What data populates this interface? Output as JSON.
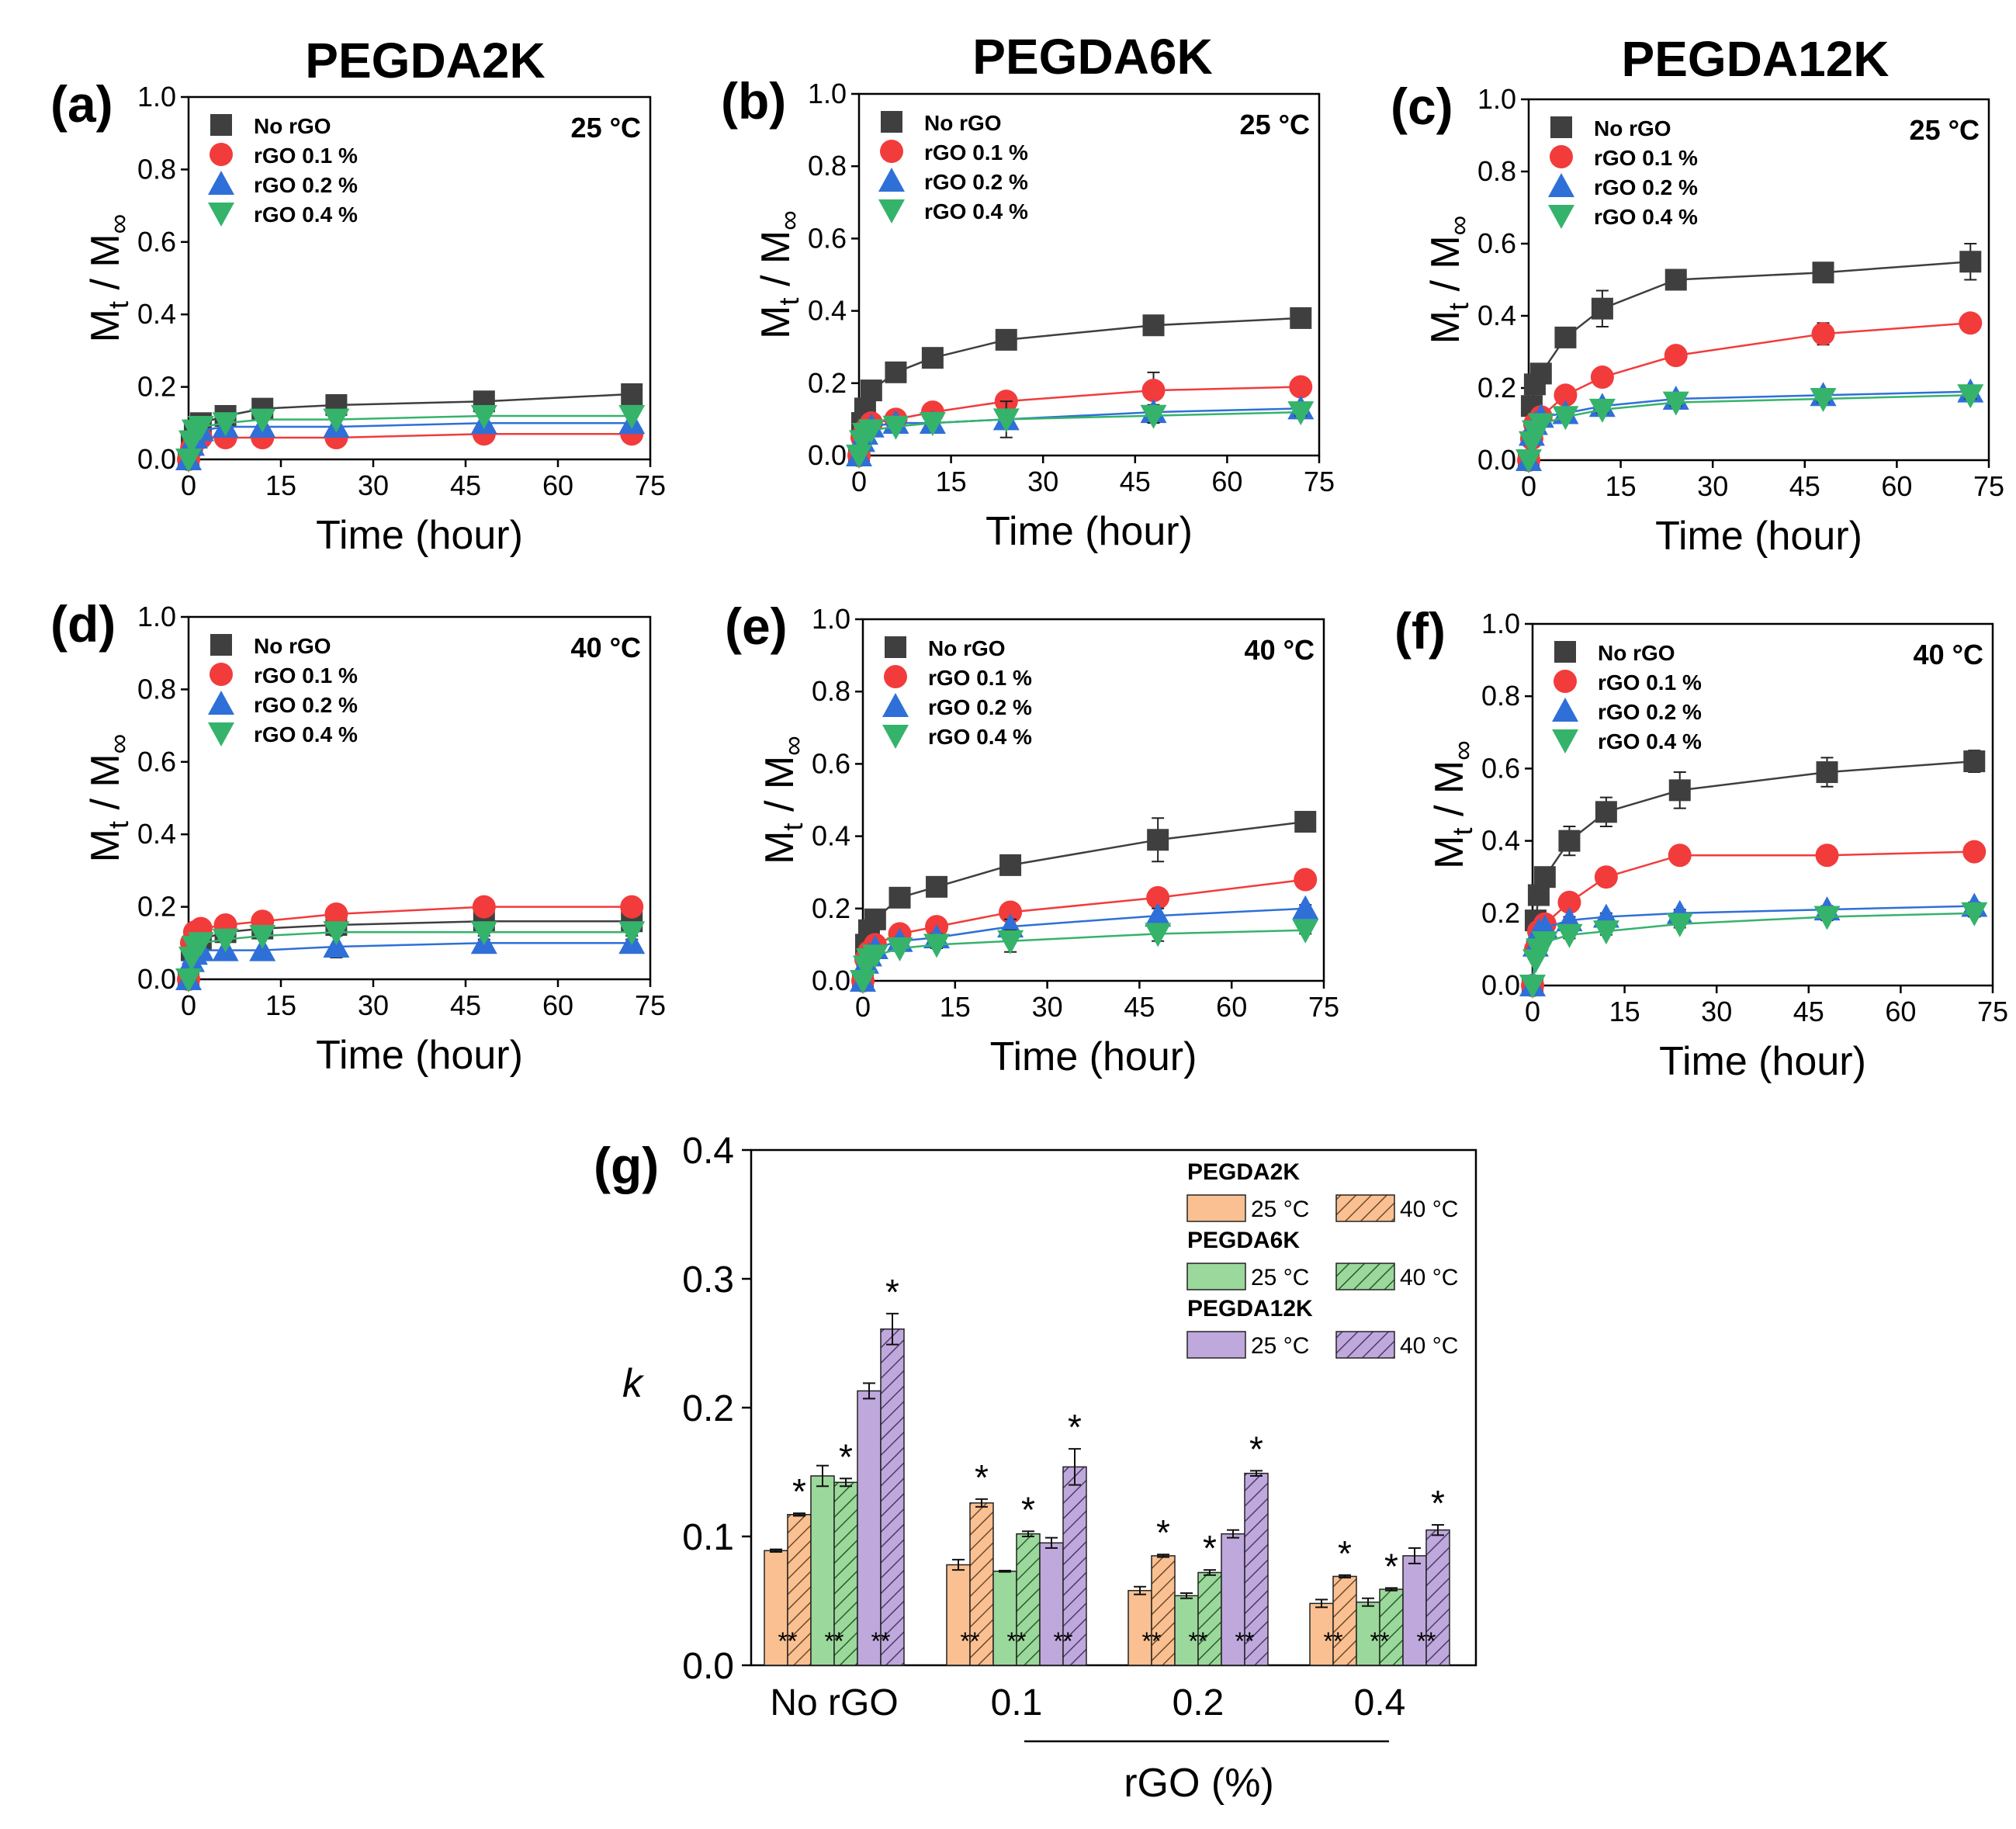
{
  "figure": {
    "column_titles": [
      "PEGDA2K",
      "PEGDA6K",
      "PEGDA12K"
    ]
  },
  "chart_data": [
    {
      "type": "scatter",
      "panel": "(a)",
      "temperature": "25 °C",
      "xlabel": "Time (hour)",
      "ylabel": "Mt / M∞",
      "xlim": [
        0,
        75
      ],
      "ylim": [
        0,
        1.0
      ],
      "xticks": [
        "0",
        "15",
        "30",
        "45",
        "60",
        "75"
      ],
      "yticks": [
        "0.0",
        "0.2",
        "0.4",
        "0.6",
        "0.8",
        "1.0"
      ],
      "x": [
        0,
        0.5,
        1,
        2,
        6,
        12,
        24,
        48,
        72
      ],
      "series": [
        {
          "name": "No rGO",
          "marker": "square",
          "color": "#3f3f3f",
          "values": [
            0,
            0.05,
            0.08,
            0.1,
            0.12,
            0.14,
            0.15,
            0.16,
            0.18
          ],
          "errors": [
            0,
            0,
            0,
            0,
            0,
            0.01,
            0.01,
            0.01,
            0.01
          ]
        },
        {
          "name": "rGO 0.1 %",
          "marker": "circle",
          "color": "#f23b3b",
          "values": [
            0,
            0.03,
            0.05,
            0.06,
            0.06,
            0.06,
            0.06,
            0.07,
            0.07
          ],
          "errors": [
            0,
            0,
            0,
            0,
            0,
            0,
            0,
            0,
            0
          ]
        },
        {
          "name": "rGO 0.2 %",
          "marker": "triangle-up",
          "color": "#2f6fd8",
          "values": [
            0,
            0.04,
            0.06,
            0.08,
            0.09,
            0.09,
            0.09,
            0.1,
            0.1
          ],
          "errors": [
            0,
            0,
            0,
            0,
            0,
            0,
            0,
            0,
            0
          ]
        },
        {
          "name": "rGO 0.4 %",
          "marker": "triangle-down",
          "color": "#35b36b",
          "values": [
            0,
            0.05,
            0.08,
            0.09,
            0.1,
            0.11,
            0.11,
            0.12,
            0.12
          ],
          "errors": [
            0,
            0,
            0,
            0,
            0,
            0,
            0,
            0,
            0
          ]
        }
      ]
    },
    {
      "type": "scatter",
      "panel": "(b)",
      "temperature": "25 °C",
      "xlabel": "Time (hour)",
      "ylabel": "Mt / M∞",
      "xlim": [
        0,
        75
      ],
      "ylim": [
        0,
        1.0
      ],
      "xticks": [
        "0",
        "15",
        "30",
        "45",
        "60",
        "75"
      ],
      "yticks": [
        "0.0",
        "0.2",
        "0.4",
        "0.6",
        "0.8",
        "1.0"
      ],
      "x": [
        0,
        0.5,
        1,
        2,
        6,
        12,
        24,
        48,
        72
      ],
      "series": [
        {
          "name": "No rGO",
          "marker": "square",
          "color": "#3f3f3f",
          "values": [
            0,
            0.09,
            0.13,
            0.18,
            0.23,
            0.27,
            0.32,
            0.36,
            0.38
          ],
          "errors": [
            0,
            0,
            0,
            0,
            0.01,
            0.01,
            0.02,
            0.02,
            0.01
          ]
        },
        {
          "name": "rGO 0.1 %",
          "marker": "circle",
          "color": "#f23b3b",
          "values": [
            0,
            0.05,
            0.07,
            0.09,
            0.1,
            0.12,
            0.15,
            0.18,
            0.19
          ],
          "errors": [
            0,
            0,
            0,
            0,
            0,
            0.01,
            0.02,
            0.05,
            0.01
          ]
        },
        {
          "name": "rGO 0.2 %",
          "marker": "triangle-up",
          "color": "#2f6fd8",
          "values": [
            0,
            0.04,
            0.06,
            0.08,
            0.09,
            0.09,
            0.1,
            0.12,
            0.13
          ],
          "errors": [
            0,
            0,
            0,
            0,
            0,
            0,
            0.02,
            0.02,
            0.01
          ]
        },
        {
          "name": "rGO 0.4 %",
          "marker": "triangle-down",
          "color": "#35b36b",
          "values": [
            0,
            0.04,
            0.06,
            0.07,
            0.08,
            0.09,
            0.1,
            0.11,
            0.12
          ],
          "errors": [
            0,
            0,
            0,
            0,
            0,
            0,
            0.05,
            0.02,
            0.01
          ]
        }
      ]
    },
    {
      "type": "scatter",
      "panel": "(c)",
      "temperature": "25 °C",
      "xlabel": "Time (hour)",
      "ylabel": "Mt / M∞",
      "xlim": [
        0,
        75
      ],
      "ylim": [
        0,
        1.0
      ],
      "xticks": [
        "0",
        "15",
        "30",
        "45",
        "60",
        "75"
      ],
      "yticks": [
        "0.0",
        "0.2",
        "0.4",
        "0.6",
        "0.8",
        "1.0"
      ],
      "x": [
        0,
        0.5,
        1,
        2,
        6,
        12,
        24,
        48,
        72
      ],
      "series": [
        {
          "name": "No rGO",
          "marker": "square",
          "color": "#3f3f3f",
          "values": [
            0,
            0.15,
            0.21,
            0.24,
            0.34,
            0.42,
            0.5,
            0.52,
            0.55
          ],
          "errors": [
            0,
            0,
            0,
            0,
            0.02,
            0.05,
            0.02,
            0.02,
            0.05
          ]
        },
        {
          "name": "rGO 0.1 %",
          "marker": "circle",
          "color": "#f23b3b",
          "values": [
            0,
            0.06,
            0.1,
            0.12,
            0.18,
            0.23,
            0.29,
            0.35,
            0.38
          ],
          "errors": [
            0,
            0,
            0,
            0,
            0.01,
            0.01,
            0.02,
            0.03,
            0.02
          ]
        },
        {
          "name": "rGO 0.2 %",
          "marker": "triangle-up",
          "color": "#2f6fd8",
          "values": [
            0,
            0.07,
            0.1,
            0.12,
            0.13,
            0.15,
            0.17,
            0.18,
            0.19
          ],
          "errors": [
            0,
            0,
            0,
            0,
            0.01,
            0.01,
            0.01,
            0.01,
            0.01
          ]
        },
        {
          "name": "rGO 0.4 %",
          "marker": "triangle-down",
          "color": "#35b36b",
          "values": [
            0,
            0.05,
            0.08,
            0.1,
            0.12,
            0.14,
            0.16,
            0.17,
            0.18
          ],
          "errors": [
            0,
            0,
            0,
            0,
            0,
            0.01,
            0.01,
            0.01,
            0.01
          ]
        }
      ]
    },
    {
      "type": "scatter",
      "panel": "(d)",
      "temperature": "40 °C",
      "xlabel": "Time (hour)",
      "ylabel": "Mt / M∞",
      "xlim": [
        0,
        75
      ],
      "ylim": [
        0,
        1.0
      ],
      "xticks": [
        "0",
        "15",
        "30",
        "45",
        "60",
        "75"
      ],
      "yticks": [
        "0.0",
        "0.2",
        "0.4",
        "0.6",
        "0.8",
        "1.0"
      ],
      "x": [
        0,
        0.5,
        1,
        2,
        6,
        12,
        24,
        48,
        72
      ],
      "series": [
        {
          "name": "No rGO",
          "marker": "square",
          "color": "#3f3f3f",
          "values": [
            0,
            0.08,
            0.1,
            0.11,
            0.13,
            0.14,
            0.15,
            0.16,
            0.16
          ],
          "errors": [
            0,
            0,
            0,
            0,
            0,
            0,
            0.01,
            0.01,
            0.01
          ]
        },
        {
          "name": "rGO 0.1 %",
          "marker": "circle",
          "color": "#f23b3b",
          "values": [
            0,
            0.1,
            0.13,
            0.14,
            0.15,
            0.16,
            0.18,
            0.2,
            0.2
          ],
          "errors": [
            0,
            0,
            0,
            0,
            0,
            0.01,
            0.01,
            0.01,
            0.01
          ]
        },
        {
          "name": "rGO 0.2 %",
          "marker": "triangle-up",
          "color": "#2f6fd8",
          "values": [
            0,
            0.05,
            0.07,
            0.08,
            0.08,
            0.08,
            0.09,
            0.1,
            0.1
          ],
          "errors": [
            0,
            0,
            0,
            0,
            0,
            0,
            0.03,
            0.01,
            0.01
          ]
        },
        {
          "name": "rGO 0.4 %",
          "marker": "triangle-down",
          "color": "#35b36b",
          "values": [
            0,
            0.06,
            0.09,
            0.1,
            0.11,
            0.12,
            0.13,
            0.13,
            0.13
          ],
          "errors": [
            0,
            0,
            0,
            0,
            0,
            0,
            0.01,
            0.01,
            0.01
          ]
        }
      ]
    },
    {
      "type": "scatter",
      "panel": "(e)",
      "temperature": "40 °C",
      "xlabel": "Time (hour)",
      "ylabel": "Mt / M∞",
      "xlim": [
        0,
        75
      ],
      "ylim": [
        0,
        1.0
      ],
      "xticks": [
        "0",
        "15",
        "30",
        "45",
        "60",
        "75"
      ],
      "yticks": [
        "0.0",
        "0.2",
        "0.4",
        "0.6",
        "0.8",
        "1.0"
      ],
      "x": [
        0,
        0.5,
        1,
        2,
        6,
        12,
        24,
        48,
        72
      ],
      "series": [
        {
          "name": "No rGO",
          "marker": "square",
          "color": "#3f3f3f",
          "values": [
            0,
            0.1,
            0.14,
            0.17,
            0.23,
            0.26,
            0.32,
            0.39,
            0.44
          ],
          "errors": [
            0,
            0,
            0,
            0,
            0.01,
            0.01,
            0.02,
            0.06,
            0.01
          ]
        },
        {
          "name": "rGO 0.1 %",
          "marker": "circle",
          "color": "#f23b3b",
          "values": [
            0,
            0.06,
            0.08,
            0.1,
            0.13,
            0.15,
            0.19,
            0.23,
            0.28
          ],
          "errors": [
            0,
            0,
            0,
            0,
            0.01,
            0.01,
            0.01,
            0.01,
            0.01
          ]
        },
        {
          "name": "rGO 0.2 %",
          "marker": "triangle-up",
          "color": "#2f6fd8",
          "values": [
            0,
            0.05,
            0.07,
            0.09,
            0.11,
            0.12,
            0.15,
            0.18,
            0.2
          ],
          "errors": [
            0,
            0,
            0,
            0,
            0,
            0.01,
            0.02,
            0.02,
            0.01
          ]
        },
        {
          "name": "rGO 0.4 %",
          "marker": "triangle-down",
          "color": "#35b36b",
          "values": [
            0,
            0.04,
            0.06,
            0.07,
            0.09,
            0.1,
            0.11,
            0.13,
            0.14
          ],
          "errors": [
            0,
            0,
            0,
            0,
            0,
            0.01,
            0.03,
            0.02,
            0.01
          ]
        }
      ]
    },
    {
      "type": "scatter",
      "panel": "(f)",
      "temperature": "40 °C",
      "xlabel": "Time (hour)",
      "ylabel": "Mt / M∞",
      "xlim": [
        0,
        75
      ],
      "ylim": [
        0,
        1.0
      ],
      "xticks": [
        "0",
        "15",
        "30",
        "45",
        "60",
        "75"
      ],
      "yticks": [
        "0.0",
        "0.2",
        "0.4",
        "0.6",
        "0.8",
        "1.0"
      ],
      "x": [
        0,
        0.5,
        1,
        2,
        6,
        12,
        24,
        48,
        72
      ],
      "series": [
        {
          "name": "No rGO",
          "marker": "square",
          "color": "#3f3f3f",
          "values": [
            0,
            0.18,
            0.25,
            0.3,
            0.4,
            0.48,
            0.54,
            0.59,
            0.62
          ],
          "errors": [
            0,
            0,
            0,
            0.01,
            0.04,
            0.04,
            0.05,
            0.04,
            0.03
          ]
        },
        {
          "name": "rGO 0.1 %",
          "marker": "circle",
          "color": "#f23b3b",
          "values": [
            0,
            0.1,
            0.15,
            0.17,
            0.23,
            0.3,
            0.36,
            0.36,
            0.37
          ],
          "errors": [
            0,
            0,
            0,
            0,
            0.01,
            0.01,
            0.01,
            0.01,
            0.01
          ]
        },
        {
          "name": "rGO 0.2 %",
          "marker": "triangle-up",
          "color": "#2f6fd8",
          "values": [
            0,
            0.11,
            0.15,
            0.16,
            0.18,
            0.19,
            0.2,
            0.21,
            0.22
          ],
          "errors": [
            0,
            0,
            0,
            0,
            0.01,
            0.01,
            0.01,
            0.01,
            0.01
          ]
        },
        {
          "name": "rGO 0.4 %",
          "marker": "triangle-down",
          "color": "#35b36b",
          "values": [
            0,
            0.07,
            0.1,
            0.12,
            0.14,
            0.15,
            0.17,
            0.19,
            0.2
          ],
          "errors": [
            0,
            0,
            0,
            0,
            0.01,
            0.01,
            0.01,
            0.01,
            0.01
          ]
        }
      ]
    },
    {
      "type": "bar",
      "panel": "(g)",
      "xlabel": "rGO (%)",
      "ylabel": "k",
      "ylim": [
        0,
        0.4
      ],
      "yticks": [
        "0.0",
        "0.1",
        "0.2",
        "0.3",
        "0.4"
      ],
      "categories": [
        "No rGO",
        "0.1",
        "0.2",
        "0.4"
      ],
      "legend_groups": [
        {
          "title": "PEGDA2K",
          "labels": [
            "25 °C",
            "40 °C"
          ]
        },
        {
          "title": "PEGDA6K",
          "labels": [
            "25 °C",
            "40 °C"
          ]
        },
        {
          "title": "PEGDA12K",
          "labels": [
            "25 °C",
            "40 °C"
          ]
        }
      ],
      "series": [
        {
          "name": "PEGDA2K 25 °C",
          "color": "#fac091",
          "hatched": false,
          "values": [
            0.089,
            0.078,
            0.058,
            0.048
          ],
          "errors": [
            0.001,
            0.004,
            0.003,
            0.003
          ]
        },
        {
          "name": "PEGDA2K 40 °C",
          "color": "#fac091",
          "hatched": true,
          "values": [
            0.117,
            0.126,
            0.085,
            0.069
          ],
          "errors": [
            0.001,
            0.003,
            0.001,
            0.001
          ]
        },
        {
          "name": "PEGDA6K 25 °C",
          "color": "#9bd89b",
          "hatched": false,
          "values": [
            0.147,
            0.073,
            0.054,
            0.049
          ],
          "errors": [
            0.008,
            0.0005,
            0.002,
            0.003
          ]
        },
        {
          "name": "PEGDA6K 40 °C",
          "color": "#9bd89b",
          "hatched": true,
          "values": [
            0.142,
            0.102,
            0.072,
            0.059
          ],
          "errors": [
            0.003,
            0.002,
            0.002,
            0.001
          ]
        },
        {
          "name": "PEGDA12K 25 °C",
          "color": "#bfa8dc",
          "hatched": false,
          "values": [
            0.213,
            0.095,
            0.102,
            0.085
          ],
          "errors": [
            0.006,
            0.004,
            0.003,
            0.006
          ]
        },
        {
          "name": "PEGDA12K 40 °C",
          "color": "#bfa8dc",
          "hatched": true,
          "values": [
            0.261,
            0.154,
            0.149,
            0.105
          ],
          "errors": [
            0.012,
            0.014,
            0.002,
            0.004
          ]
        }
      ],
      "annotations": {
        "single_star": "*",
        "double_star": "**"
      }
    }
  ]
}
